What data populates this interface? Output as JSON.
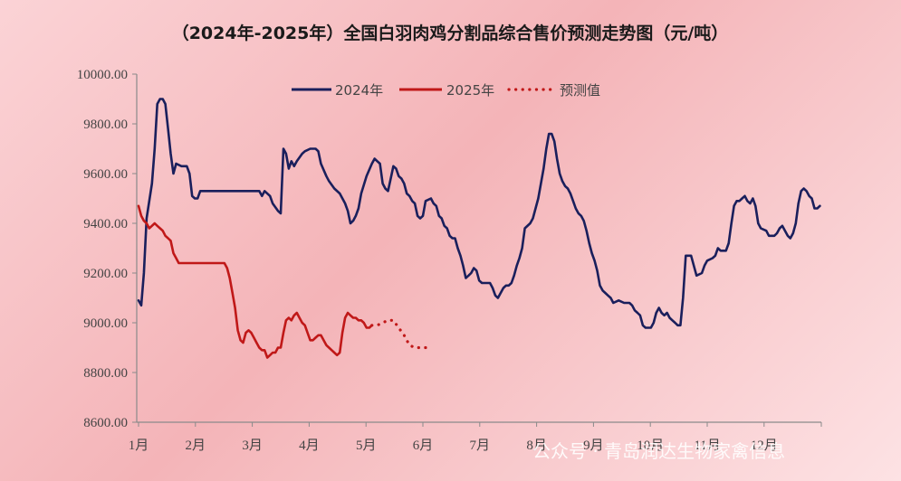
{
  "chart_data": {
    "type": "line",
    "title": "（2024年-2025年）全国白羽肉鸡分割品综合售价预测走势图（元/吨）",
    "ylim": [
      8600,
      10000
    ],
    "yticks": [
      "8600.00",
      "8800.00",
      "9000.00",
      "9200.00",
      "9400.00",
      "9600.00",
      "9800.00",
      "10000.00"
    ],
    "xticks": [
      "1月",
      "2月",
      "3月",
      "4月",
      "5月",
      "6月",
      "7月",
      "8月",
      "9月",
      "10月",
      "11月",
      "12月"
    ],
    "x_unit": "day of year",
    "legend": {
      "position": "top-center",
      "labels": [
        "2024年",
        "2025年",
        "预测值"
      ]
    },
    "colors": {
      "2024": "#1a1f5c",
      "2025": "#c01818",
      "forecast": "#c01818"
    },
    "series": [
      {
        "name": "2024年",
        "points": [
          [
            1,
            9090
          ],
          [
            2,
            9070
          ],
          [
            3,
            9200
          ],
          [
            4,
            9420
          ],
          [
            6,
            9560
          ],
          [
            7,
            9700
          ],
          [
            8,
            9880
          ],
          [
            9,
            9900
          ],
          [
            10,
            9900
          ],
          [
            11,
            9880
          ],
          [
            12,
            9780
          ],
          [
            13,
            9680
          ],
          [
            14,
            9600
          ],
          [
            15,
            9640
          ],
          [
            17,
            9630
          ],
          [
            19,
            9630
          ],
          [
            20,
            9600
          ],
          [
            21,
            9510
          ],
          [
            22,
            9500
          ],
          [
            23,
            9500
          ],
          [
            24,
            9530
          ],
          [
            30,
            9530
          ],
          [
            40,
            9530
          ],
          [
            46,
            9530
          ],
          [
            47,
            9510
          ],
          [
            48,
            9530
          ],
          [
            50,
            9510
          ],
          [
            51,
            9480
          ],
          [
            53,
            9450
          ],
          [
            54,
            9440
          ],
          [
            55,
            9700
          ],
          [
            56,
            9680
          ],
          [
            57,
            9620
          ],
          [
            58,
            9650
          ],
          [
            59,
            9630
          ],
          [
            60,
            9650
          ],
          [
            62,
            9680
          ],
          [
            63,
            9690
          ],
          [
            65,
            9700
          ],
          [
            67,
            9700
          ],
          [
            68,
            9690
          ],
          [
            69,
            9640
          ],
          [
            71,
            9590
          ],
          [
            72,
            9570
          ],
          [
            74,
            9540
          ],
          [
            76,
            9520
          ],
          [
            78,
            9480
          ],
          [
            79,
            9450
          ],
          [
            80,
            9400
          ],
          [
            81,
            9410
          ],
          [
            82,
            9430
          ],
          [
            83,
            9460
          ],
          [
            84,
            9520
          ],
          [
            86,
            9590
          ],
          [
            88,
            9640
          ],
          [
            89,
            9660
          ],
          [
            90,
            9650
          ],
          [
            91,
            9640
          ],
          [
            92,
            9560
          ],
          [
            93,
            9540
          ],
          [
            94,
            9530
          ],
          [
            95,
            9580
          ],
          [
            96,
            9630
          ],
          [
            97,
            9620
          ],
          [
            98,
            9590
          ],
          [
            99,
            9580
          ],
          [
            100,
            9560
          ],
          [
            101,
            9520
          ],
          [
            102,
            9510
          ],
          [
            103,
            9490
          ],
          [
            104,
            9480
          ],
          [
            105,
            9430
          ],
          [
            106,
            9420
          ],
          [
            107,
            9430
          ],
          [
            108,
            9490
          ],
          [
            110,
            9500
          ],
          [
            111,
            9480
          ],
          [
            112,
            9470
          ],
          [
            113,
            9430
          ],
          [
            114,
            9420
          ],
          [
            115,
            9390
          ],
          [
            116,
            9380
          ],
          [
            117,
            9350
          ],
          [
            118,
            9340
          ],
          [
            119,
            9340
          ],
          [
            120,
            9300
          ],
          [
            121,
            9270
          ],
          [
            122,
            9230
          ],
          [
            123,
            9180
          ],
          [
            124,
            9190
          ],
          [
            125,
            9200
          ],
          [
            126,
            9220
          ],
          [
            127,
            9210
          ],
          [
            128,
            9170
          ],
          [
            129,
            9160
          ],
          [
            130,
            9160
          ],
          [
            132,
            9160
          ],
          [
            133,
            9140
          ],
          [
            134,
            9110
          ],
          [
            135,
            9100
          ],
          [
            136,
            9120
          ],
          [
            137,
            9140
          ],
          [
            138,
            9150
          ],
          [
            139,
            9150
          ],
          [
            140,
            9160
          ],
          [
            141,
            9190
          ],
          [
            142,
            9230
          ],
          [
            143,
            9260
          ],
          [
            144,
            9300
          ],
          [
            145,
            9380
          ],
          [
            147,
            9400
          ],
          [
            148,
            9420
          ],
          [
            150,
            9500
          ],
          [
            152,
            9620
          ],
          [
            153,
            9700
          ],
          [
            154,
            9760
          ],
          [
            155,
            9760
          ],
          [
            156,
            9730
          ],
          [
            157,
            9660
          ],
          [
            158,
            9600
          ],
          [
            159,
            9570
          ],
          [
            160,
            9550
          ],
          [
            161,
            9540
          ],
          [
            162,
            9520
          ],
          [
            163,
            9490
          ],
          [
            164,
            9460
          ],
          [
            165,
            9440
          ],
          [
            166,
            9430
          ],
          [
            167,
            9410
          ],
          [
            168,
            9370
          ],
          [
            169,
            9320
          ],
          [
            170,
            9280
          ],
          [
            171,
            9250
          ],
          [
            172,
            9210
          ],
          [
            173,
            9150
          ],
          [
            174,
            9130
          ],
          [
            175,
            9120
          ],
          [
            176,
            9110
          ],
          [
            177,
            9100
          ],
          [
            178,
            9080
          ],
          [
            180,
            9090
          ],
          [
            182,
            9080
          ],
          [
            184,
            9080
          ],
          [
            185,
            9070
          ],
          [
            186,
            9050
          ],
          [
            187,
            9040
          ],
          [
            188,
            9030
          ],
          [
            189,
            8990
          ],
          [
            190,
            8980
          ],
          [
            192,
            8980
          ],
          [
            193,
            9000
          ],
          [
            194,
            9040
          ],
          [
            195,
            9060
          ],
          [
            196,
            9040
          ],
          [
            197,
            9030
          ],
          [
            198,
            9040
          ],
          [
            199,
            9020
          ],
          [
            200,
            9010
          ],
          [
            201,
            9000
          ],
          [
            202,
            8990
          ],
          [
            203,
            8990
          ],
          [
            204,
            9100
          ],
          [
            205,
            9270
          ],
          [
            207,
            9270
          ],
          [
            208,
            9230
          ],
          [
            209,
            9190
          ],
          [
            211,
            9200
          ],
          [
            212,
            9230
          ],
          [
            213,
            9250
          ],
          [
            215,
            9260
          ],
          [
            216,
            9270
          ],
          [
            217,
            9300
          ],
          [
            218,
            9290
          ],
          [
            220,
            9290
          ],
          [
            221,
            9320
          ],
          [
            222,
            9400
          ],
          [
            223,
            9470
          ],
          [
            224,
            9490
          ],
          [
            225,
            9490
          ],
          [
            226,
            9500
          ],
          [
            227,
            9510
          ],
          [
            228,
            9490
          ],
          [
            229,
            9480
          ],
          [
            230,
            9500
          ],
          [
            231,
            9470
          ],
          [
            232,
            9400
          ],
          [
            233,
            9380
          ],
          [
            235,
            9370
          ],
          [
            236,
            9350
          ],
          [
            238,
            9350
          ],
          [
            239,
            9360
          ],
          [
            240,
            9380
          ],
          [
            241,
            9390
          ],
          [
            242,
            9370
          ],
          [
            243,
            9350
          ],
          [
            244,
            9340
          ],
          [
            245,
            9360
          ],
          [
            246,
            9400
          ],
          [
            247,
            9480
          ],
          [
            248,
            9530
          ],
          [
            249,
            9540
          ],
          [
            250,
            9530
          ],
          [
            251,
            9510
          ],
          [
            252,
            9500
          ],
          [
            253,
            9460
          ],
          [
            254,
            9460
          ],
          [
            255,
            9470
          ]
        ]
      },
      {
        "name": "2025年",
        "points": [
          [
            1,
            9470
          ],
          [
            2,
            9430
          ],
          [
            3,
            9410
          ],
          [
            4,
            9400
          ],
          [
            5,
            9380
          ],
          [
            6,
            9390
          ],
          [
            7,
            9400
          ],
          [
            8,
            9390
          ],
          [
            9,
            9380
          ],
          [
            10,
            9370
          ],
          [
            11,
            9350
          ],
          [
            12,
            9340
          ],
          [
            13,
            9330
          ],
          [
            14,
            9280
          ],
          [
            15,
            9260
          ],
          [
            16,
            9240
          ],
          [
            18,
            9240
          ],
          [
            25,
            9240
          ],
          [
            30,
            9240
          ],
          [
            33,
            9240
          ],
          [
            34,
            9220
          ],
          [
            35,
            9180
          ],
          [
            36,
            9120
          ],
          [
            37,
            9060
          ],
          [
            38,
            8970
          ],
          [
            39,
            8930
          ],
          [
            40,
            8920
          ],
          [
            41,
            8960
          ],
          [
            42,
            8970
          ],
          [
            43,
            8960
          ],
          [
            44,
            8940
          ],
          [
            45,
            8920
          ],
          [
            46,
            8900
          ],
          [
            47,
            8890
          ],
          [
            48,
            8890
          ],
          [
            49,
            8860
          ],
          [
            50,
            8870
          ],
          [
            51,
            8880
          ],
          [
            52,
            8880
          ],
          [
            53,
            8900
          ],
          [
            54,
            8900
          ],
          [
            55,
            8960
          ],
          [
            56,
            9010
          ],
          [
            57,
            9020
          ],
          [
            58,
            9010
          ],
          [
            59,
            9030
          ],
          [
            60,
            9040
          ],
          [
            61,
            9020
          ],
          [
            62,
            9000
          ],
          [
            63,
            8990
          ],
          [
            64,
            8960
          ],
          [
            65,
            8930
          ],
          [
            66,
            8930
          ],
          [
            67,
            8940
          ],
          [
            68,
            8950
          ],
          [
            69,
            8950
          ],
          [
            70,
            8930
          ],
          [
            71,
            8910
          ],
          [
            72,
            8900
          ],
          [
            73,
            8890
          ],
          [
            74,
            8880
          ],
          [
            75,
            8870
          ],
          [
            76,
            8880
          ],
          [
            77,
            8960
          ],
          [
            78,
            9020
          ],
          [
            79,
            9040
          ],
          [
            80,
            9030
          ],
          [
            81,
            9020
          ],
          [
            82,
            9020
          ],
          [
            83,
            9010
          ],
          [
            84,
            9010
          ],
          [
            85,
            9000
          ],
          [
            86,
            8980
          ],
          [
            87,
            8980
          ],
          [
            88,
            8990
          ]
        ]
      },
      {
        "name": "预测值",
        "points": [
          [
            88,
            8990
          ],
          [
            90,
            8990
          ],
          [
            92,
            9000
          ],
          [
            94,
            9010
          ],
          [
            96,
            9010
          ],
          [
            98,
            8980
          ],
          [
            100,
            8950
          ],
          [
            102,
            8910
          ],
          [
            104,
            8900
          ],
          [
            106,
            8900
          ],
          [
            108,
            8900
          ]
        ]
      }
    ]
  },
  "watermark": "公众号 · 青岛润达生物家禽信息"
}
